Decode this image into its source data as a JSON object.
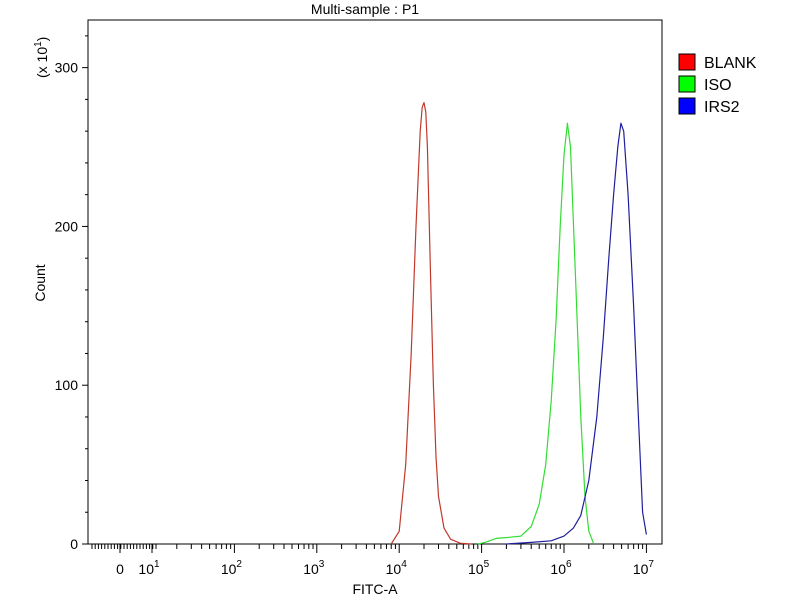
{
  "chart_data": {
    "type": "line",
    "title": "Multi-sample : P1",
    "xlabel": "FITC-A",
    "ylabel": "Count",
    "y_multiplier_label": "(x 10",
    "y_multiplier_exp": "1",
    "y_multiplier_close": ")",
    "x_scale": "log",
    "xlim": [
      -500,
      10000000
    ],
    "ylim": [
      0,
      33
    ],
    "x_zero_label": "0",
    "x_ticks": [
      {
        "value": 10,
        "base": "10",
        "exp": "1"
      },
      {
        "value": 100,
        "base": "10",
        "exp": "2"
      },
      {
        "value": 1000,
        "base": "10",
        "exp": "3"
      },
      {
        "value": 10000,
        "base": "10",
        "exp": "4"
      },
      {
        "value": 100000,
        "base": "10",
        "exp": "5"
      },
      {
        "value": 1000000,
        "base": "10",
        "exp": "6"
      },
      {
        "value": 10000000,
        "base": "10",
        "exp": "7"
      }
    ],
    "y_ticks": [
      {
        "value": 0,
        "label": "0"
      },
      {
        "value": 10,
        "label": "100"
      },
      {
        "value": 20,
        "label": "200"
      },
      {
        "value": 30,
        "label": "300"
      }
    ],
    "legend_position": "right",
    "series": [
      {
        "name": "BLANK",
        "color": "#c0392b",
        "legend_color": "#ff0000",
        "x": [
          8000,
          10000,
          12000,
          14000,
          16000,
          18000,
          19000,
          20000,
          21000,
          22000,
          24000,
          26000,
          28000,
          30000,
          35000,
          42000,
          55000,
          75000
        ],
        "y": [
          0,
          0.8,
          5,
          12,
          20,
          26,
          27.5,
          27.8,
          27.2,
          25,
          17,
          10,
          5.5,
          3,
          1,
          0.3,
          0.05,
          0
        ]
      },
      {
        "name": "ISO",
        "color": "#33dd33",
        "legend_color": "#00ff00",
        "x": [
          90000,
          110000,
          150000,
          200000,
          300000,
          400000,
          500000,
          600000,
          700000,
          800000,
          900000,
          1000000,
          1100000,
          1200000,
          1400000,
          1600000,
          1800000,
          2000000,
          2300000
        ],
        "y": [
          0,
          0.1,
          0.35,
          0.4,
          0.5,
          1.1,
          2.5,
          5,
          9,
          14,
          20,
          24.5,
          26.5,
          25,
          16,
          8,
          3,
          0.8,
          0
        ]
      },
      {
        "name": "IRS2",
        "color": "#1f1f9e",
        "legend_color": "#0000ff",
        "x": [
          200000,
          400000,
          700000,
          1000000,
          1300000,
          1600000,
          2000000,
          2500000,
          3000000,
          3500000,
          4000000,
          4500000,
          4900000,
          5300000,
          6000000,
          7000000,
          8000000,
          9000000,
          10000000
        ],
        "y": [
          0,
          0.1,
          0.2,
          0.5,
          1,
          1.8,
          4,
          8,
          13,
          18,
          22,
          25,
          26.5,
          26,
          22,
          15,
          8,
          2,
          0.6
        ]
      }
    ]
  }
}
